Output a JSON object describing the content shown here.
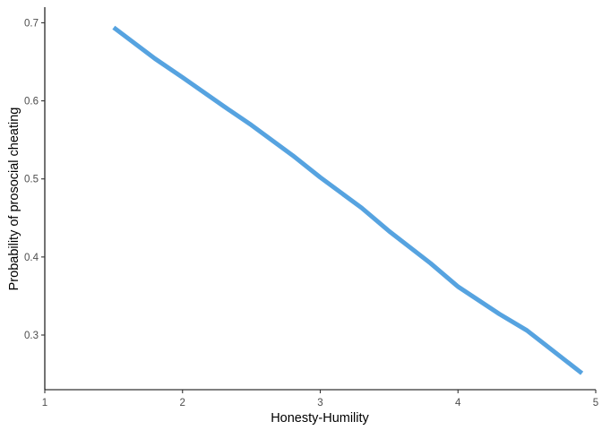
{
  "chart_data": {
    "type": "line",
    "title": "",
    "xlabel": "Honesty-Humility",
    "ylabel": "Probability of prosocial cheating",
    "xlim": [
      1,
      5
    ],
    "ylim": [
      0.23,
      0.72
    ],
    "x_ticks": [
      1,
      2,
      3,
      4,
      5
    ],
    "x_tick_labels": [
      "1",
      "2",
      "3",
      "4",
      "5"
    ],
    "y_ticks": [
      0.3,
      0.4,
      0.5,
      0.6,
      0.7
    ],
    "y_tick_labels": [
      "0.3",
      "0.4",
      "0.5",
      "0.6",
      "0.7"
    ],
    "grid": false,
    "series": [
      {
        "color": "#56a3e0",
        "x": [
          1.5,
          1.8,
          2.0,
          2.3,
          2.5,
          2.8,
          3.0,
          3.3,
          3.5,
          3.8,
          4.0,
          4.3,
          4.5,
          4.9
        ],
        "y": [
          0.694,
          0.654,
          0.63,
          0.593,
          0.569,
          0.53,
          0.502,
          0.463,
          0.433,
          0.392,
          0.362,
          0.327,
          0.306,
          0.251
        ]
      }
    ]
  }
}
